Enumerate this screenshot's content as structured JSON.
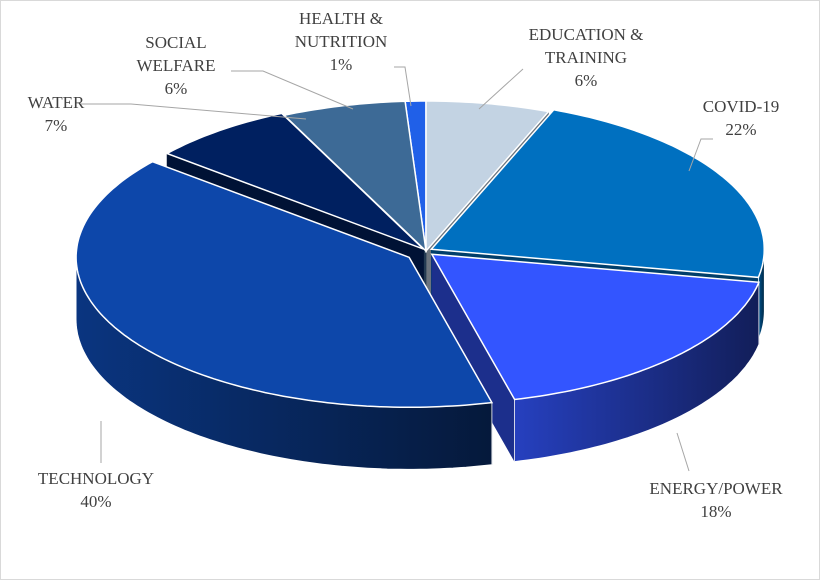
{
  "chart_data": {
    "type": "pie3d",
    "categories": [
      "EDUCATION & TRAINING",
      "COVID-19",
      "ENERGY/POWER",
      "TECHNOLOGY",
      "WATER",
      "SOCIAL WELFARE",
      "HEALTH & NUTRITION"
    ],
    "values": [
      6,
      22,
      18,
      40,
      7,
      6,
      1
    ],
    "value_labels": [
      "6%",
      "22%",
      "18%",
      "40%",
      "7%",
      "6%",
      "1%"
    ],
    "colors": [
      "#c3d3e3",
      "#0070c0",
      "#3355ff",
      "#0d47aa",
      "#002060",
      "#3d6a96",
      "#2060e8"
    ]
  }
}
